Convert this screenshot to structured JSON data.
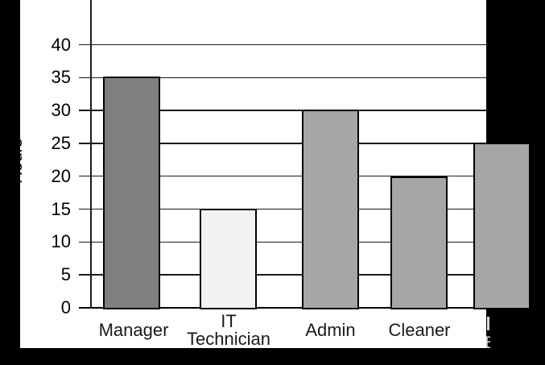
{
  "canvas": {
    "background": "#000000",
    "page_background": "#ffffff"
  },
  "chart_data": {
    "type": "bar",
    "title": "",
    "xlabel": "",
    "ylabel": "Hours",
    "categories": [
      "Manager",
      "IT Technician",
      "Admin",
      "Cleaner",
      ""
    ],
    "values": [
      35,
      15,
      30,
      19.8,
      25
    ],
    "yticks": [
      0,
      5,
      10,
      15,
      20,
      25,
      30,
      35,
      40
    ],
    "ylim": [
      0,
      44
    ],
    "grid": "horizontal",
    "legend": "none",
    "bar_colors": [
      "#7f7f7f",
      "#f2f2f2",
      "#a6a6a6",
      "#a6a6a6",
      "#a6a6a6"
    ],
    "bar_border_color": "#000000",
    "gridline_color": "#1a1a1a",
    "note": "fifth category bar partly overlaps a black cut-off region; its label is hidden except two light glyph fragments"
  },
  "category_label_lines": [
    [
      "Manager"
    ],
    [
      "IT",
      "Technician"
    ],
    [
      "Admin"
    ],
    [
      "Cleaner"
    ],
    []
  ],
  "cutoff_fragments": {
    "line1": "I",
    "line2": "E"
  }
}
